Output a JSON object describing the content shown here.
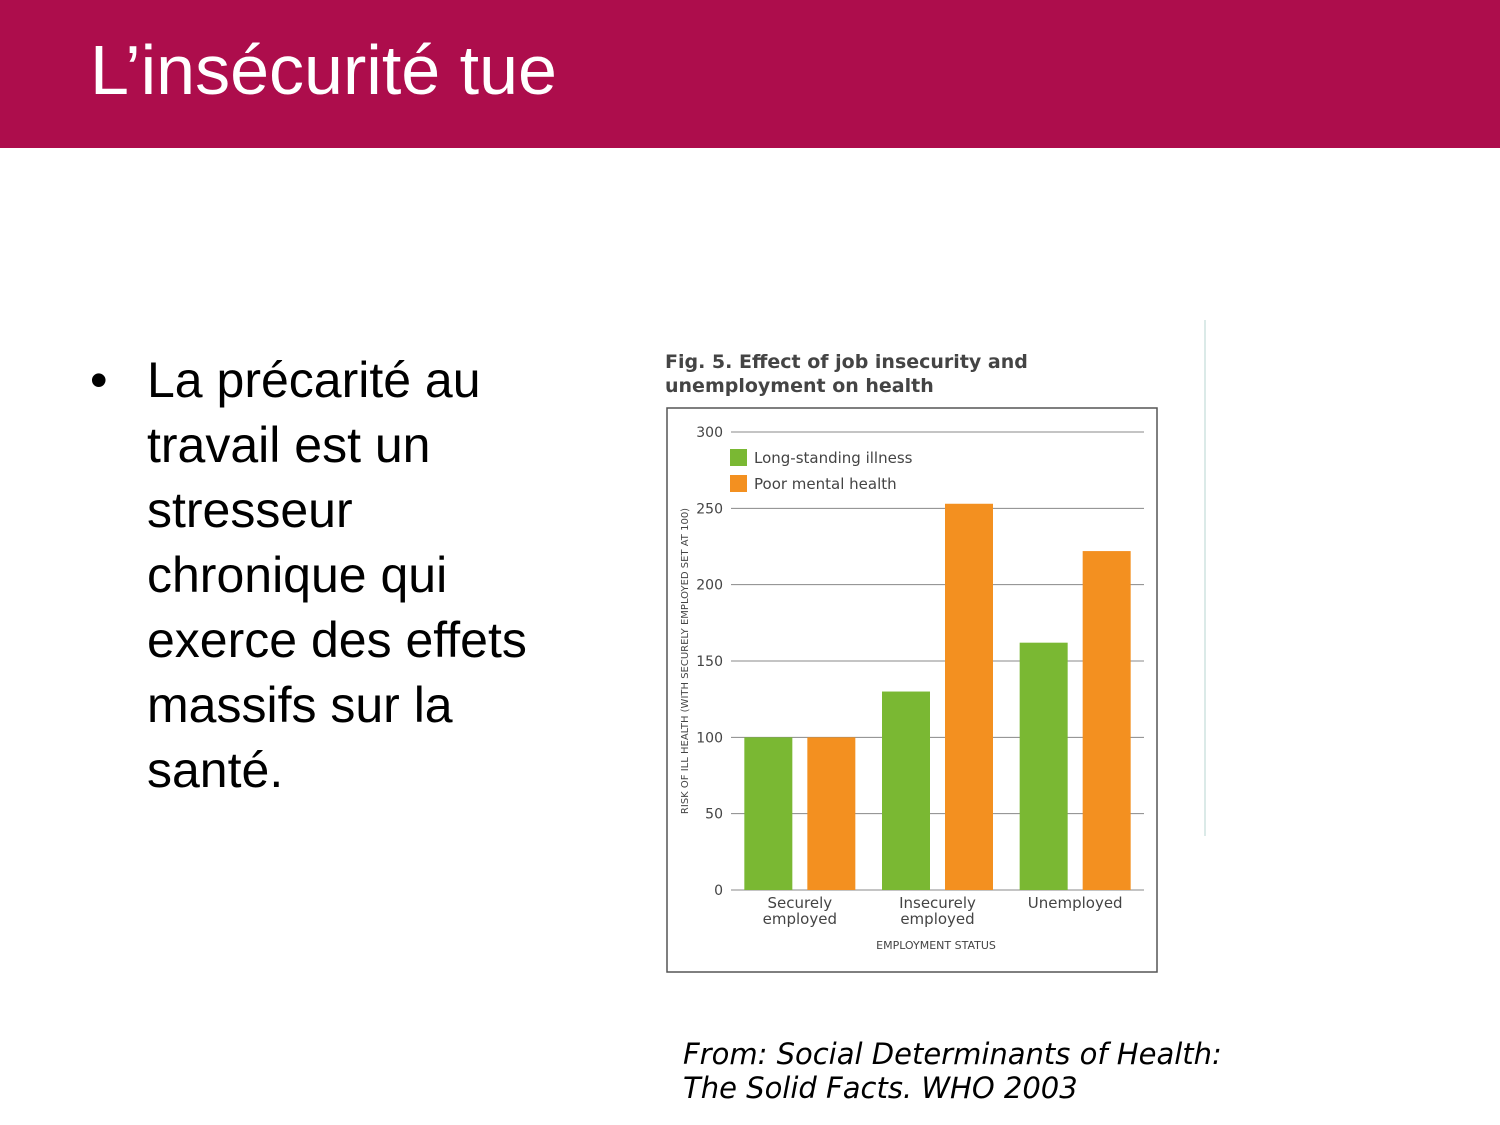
{
  "slide": {
    "title": "L’insécurité tue",
    "bullet": "La précarité au travail est un stresseur chronique qui exerce des effets massifs sur la santé.",
    "source": [
      "From: Social Determinants of Health:",
      "The Solid Facts. WHO 2003"
    ]
  },
  "chart_data": {
    "type": "bar",
    "title": "Fig. 5. Effect of job insecurity and unemployment on health",
    "x_label": "EMPLOYMENT STATUS",
    "y_label": "RISK OF ILL HEALTH (WITH SECURELY EMPLOYED SET AT 100)",
    "categories": [
      "Securely employed",
      "Insecurely employed",
      "Unemployed"
    ],
    "series": [
      {
        "name": "Long-standing illness",
        "color": "#7ab833",
        "values": [
          100,
          130,
          162
        ]
      },
      {
        "name": "Poor mental health",
        "color": "#f39020",
        "values": [
          100,
          253,
          222
        ]
      }
    ],
    "ylim": [
      0,
      300
    ],
    "yticks": [
      0,
      50,
      100,
      150,
      200,
      250,
      300
    ],
    "grid": true,
    "legend": "top-left"
  }
}
